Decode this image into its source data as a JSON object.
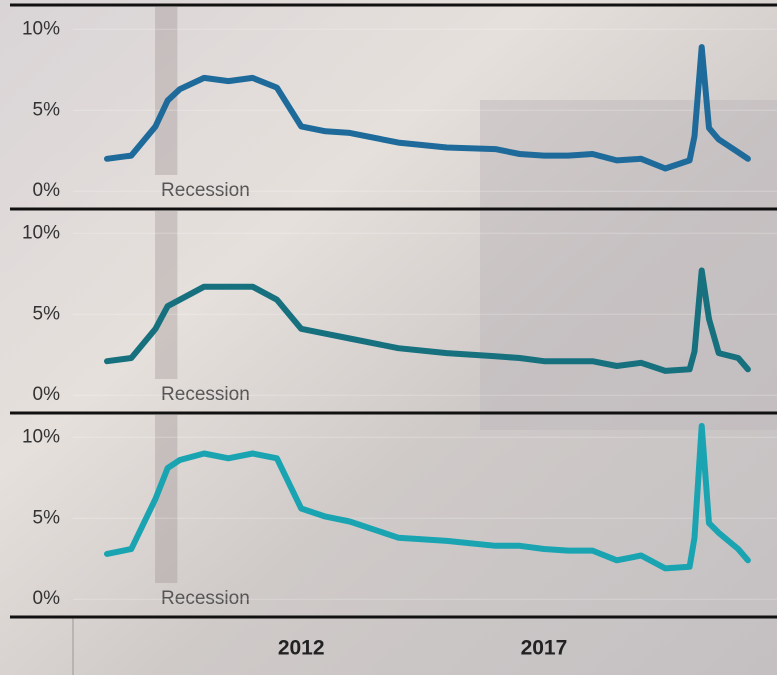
{
  "chart_data": {
    "type": "line",
    "x": [
      2008.0,
      2008.5,
      2009.0,
      2009.25,
      2009.5,
      2010.0,
      2010.5,
      2011.0,
      2011.5,
      2012.0,
      2012.5,
      2013.0,
      2014.0,
      2015.0,
      2016.0,
      2016.5,
      2017.0,
      2017.5,
      2018.0,
      2018.5,
      2019.0,
      2019.5,
      2020.0,
      2020.1,
      2020.25,
      2020.4,
      2020.6,
      2021.0,
      2021.2
    ],
    "xlim": [
      2007.3,
      2021.8
    ],
    "xticks": [
      2012,
      2017
    ],
    "recession": [
      2008.99,
      2009.45
    ],
    "panels": [
      {
        "color": "#1e6a9a",
        "ylim": [
          -1.1,
          11.5
        ],
        "yticks": [
          {
            "value": 0,
            "label": "0%"
          },
          {
            "value": 5,
            "label": "5%"
          },
          {
            "value": 10,
            "label": "10%"
          }
        ],
        "annotation": "Recession",
        "values": [
          2.0,
          2.2,
          4.0,
          5.6,
          6.3,
          7.0,
          6.8,
          7.0,
          6.4,
          4.0,
          3.7,
          3.6,
          3.0,
          2.7,
          2.6,
          2.3,
          2.2,
          2.2,
          2.3,
          1.9,
          2.0,
          1.4,
          1.9,
          3.4,
          8.9,
          3.9,
          3.2,
          2.4,
          2.0
        ]
      },
      {
        "color": "#17707e",
        "ylim": [
          -1.1,
          11.5
        ],
        "yticks": [
          {
            "value": 0,
            "label": "0%"
          },
          {
            "value": 5,
            "label": "5%"
          },
          {
            "value": 10,
            "label": "10%"
          }
        ],
        "annotation": "Recession",
        "values": [
          2.1,
          2.3,
          4.1,
          5.5,
          5.9,
          6.7,
          6.7,
          6.7,
          5.9,
          4.1,
          3.8,
          3.5,
          2.9,
          2.6,
          2.4,
          2.3,
          2.1,
          2.1,
          2.1,
          1.8,
          2.0,
          1.5,
          1.6,
          2.7,
          7.7,
          4.7,
          2.6,
          2.3,
          1.6
        ]
      },
      {
        "color": "#1aa4b2",
        "ylim": [
          -1.1,
          11.5
        ],
        "yticks": [
          {
            "value": 0,
            "label": "0%"
          },
          {
            "value": 5,
            "label": "5%"
          },
          {
            "value": 10,
            "label": "10%"
          }
        ],
        "annotation": "Recession",
        "values": [
          2.8,
          3.1,
          6.2,
          8.1,
          8.6,
          9.0,
          8.7,
          9.0,
          8.7,
          5.6,
          5.1,
          4.8,
          3.8,
          3.6,
          3.3,
          3.3,
          3.1,
          3.0,
          3.0,
          2.4,
          2.7,
          1.9,
          2.0,
          3.8,
          10.7,
          4.7,
          4.1,
          3.1,
          2.4
        ]
      }
    ]
  }
}
